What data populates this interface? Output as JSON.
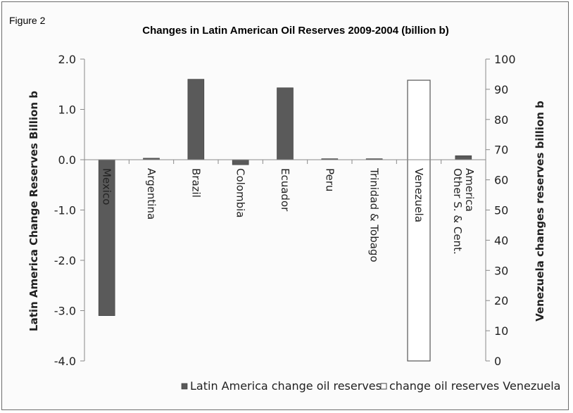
{
  "figure_label": "Figure 2",
  "chart_data": {
    "type": "bar",
    "title": "Changes in Latin American Oil Reserves 2009-2004 (billion b)",
    "ylabel": "Latin America Change Reserves Billion b",
    "y2label": "Venezuela changes reserves billion b",
    "categories": [
      "Mexico",
      "Argentina",
      "Brazil",
      "Colombia",
      "Ecuador",
      "Peru",
      "Trinidad & Tobago",
      "Venezuela",
      "Other S. & Cent. America"
    ],
    "category_lines": [
      [
        "Mexico"
      ],
      [
        "Argentina"
      ],
      [
        "Brazil"
      ],
      [
        "Colombia"
      ],
      [
        "Ecuador"
      ],
      [
        "Peru"
      ],
      [
        "Trinidad & Tobago"
      ],
      [
        "Venezuela"
      ],
      [
        "Other S. & Cent.",
        "America"
      ]
    ],
    "ylim": [
      -4.0,
      2.0
    ],
    "yticks": [
      "2.0",
      "1.0",
      "0.0",
      "-1.0",
      "-2.0",
      "-3.0",
      "-4.0"
    ],
    "y2lim": [
      0,
      100
    ],
    "y2ticks": [
      "100",
      "90",
      "80",
      "70",
      "60",
      "50",
      "40",
      "30",
      "20",
      "10",
      "0"
    ],
    "series": [
      {
        "name": "Latin America change oil reserves",
        "axis": "left",
        "color": "#5a5a5a",
        "values": [
          -3.1,
          0.03,
          1.6,
          -0.1,
          1.43,
          0.02,
          0.02,
          null,
          0.08
        ]
      },
      {
        "name": "change oil reserves Venezuela",
        "axis": "right",
        "color": "#ffffff",
        "values": [
          null,
          null,
          null,
          null,
          null,
          null,
          null,
          93,
          null
        ]
      }
    ],
    "legend_position": "bottom",
    "grid": false
  }
}
